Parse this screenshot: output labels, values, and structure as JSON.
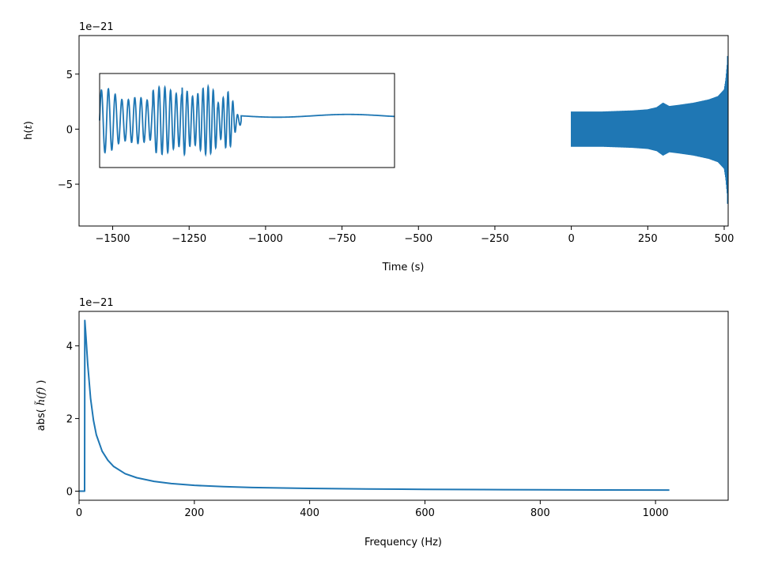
{
  "chart_data": [
    {
      "type": "line",
      "panel": "time-domain",
      "xlabel": "Time (s)",
      "ylabel_parts": [
        "h(",
        "t",
        ")"
      ],
      "offset_text": "1e−21",
      "xlim": [
        -1610,
        513
      ],
      "ylim": [
        -8.8,
        8.5
      ],
      "xticks": [
        -1500,
        -1250,
        -1000,
        -750,
        -500,
        -250,
        0,
        250,
        500
      ],
      "xtick_labels": [
        "−1500",
        "−1250",
        "−1000",
        "−750",
        "−500",
        "−250",
        "0",
        "250",
        "500"
      ],
      "yticks": [
        -5,
        0,
        5
      ],
      "ytick_labels": [
        "−5",
        "0",
        "5"
      ],
      "line_color": "#1f77b4",
      "series": [
        {
          "x_range": [
            0,
            512
          ],
          "envelope_x": [
            0,
            50,
            100,
            150,
            200,
            250,
            280,
            300,
            320,
            350,
            400,
            450,
            480,
            500,
            505,
            510,
            512
          ],
          "envelope_upper": [
            1.6,
            1.6,
            1.6,
            1.65,
            1.7,
            1.8,
            2.0,
            2.4,
            2.1,
            2.2,
            2.4,
            2.7,
            3.0,
            3.6,
            4.5,
            6.0,
            7.8
          ],
          "envelope_lower": [
            -1.6,
            -1.6,
            -1.6,
            -1.65,
            -1.7,
            -1.8,
            -2.0,
            -2.4,
            -2.1,
            -2.2,
            -2.4,
            -2.7,
            -3.0,
            -3.6,
            -4.5,
            -6.0,
            -8.2
          ]
        }
      ],
      "inset": {
        "xlim": [
          0,
          1
        ],
        "ylim": [
          -1,
          1
        ],
        "frame": true
      }
    },
    {
      "type": "line",
      "panel": "frequency-domain",
      "xlabel": "Frequency (Hz)",
      "ylabel_parts": [
        "abs( ",
        "h̃(f)",
        " )"
      ],
      "offset_text": "1e−21",
      "xlim": [
        0,
        1126
      ],
      "ylim": [
        -0.25,
        4.95
      ],
      "xticks": [
        0,
        200,
        400,
        600,
        800,
        1000
      ],
      "xtick_labels": [
        "0",
        "200",
        "400",
        "600",
        "800",
        "1000"
      ],
      "yticks": [
        0,
        2,
        4
      ],
      "ytick_labels": [
        "0",
        "2",
        "4"
      ],
      "line_color": "#1f77b4",
      "series": [
        {
          "x": [
            0,
            9,
            9.6,
            10,
            12,
            15,
            20,
            25,
            30,
            40,
            50,
            60,
            80,
            100,
            130,
            160,
            200,
            250,
            300,
            400,
            500,
            600,
            700,
            800,
            900,
            1024
          ],
          "y": [
            0,
            0,
            0,
            4.7,
            4.25,
            3.5,
            2.55,
            1.95,
            1.55,
            1.1,
            0.85,
            0.68,
            0.48,
            0.37,
            0.27,
            0.21,
            0.16,
            0.125,
            0.1,
            0.075,
            0.06,
            0.05,
            0.043,
            0.037,
            0.033,
            0.03
          ]
        }
      ]
    }
  ]
}
